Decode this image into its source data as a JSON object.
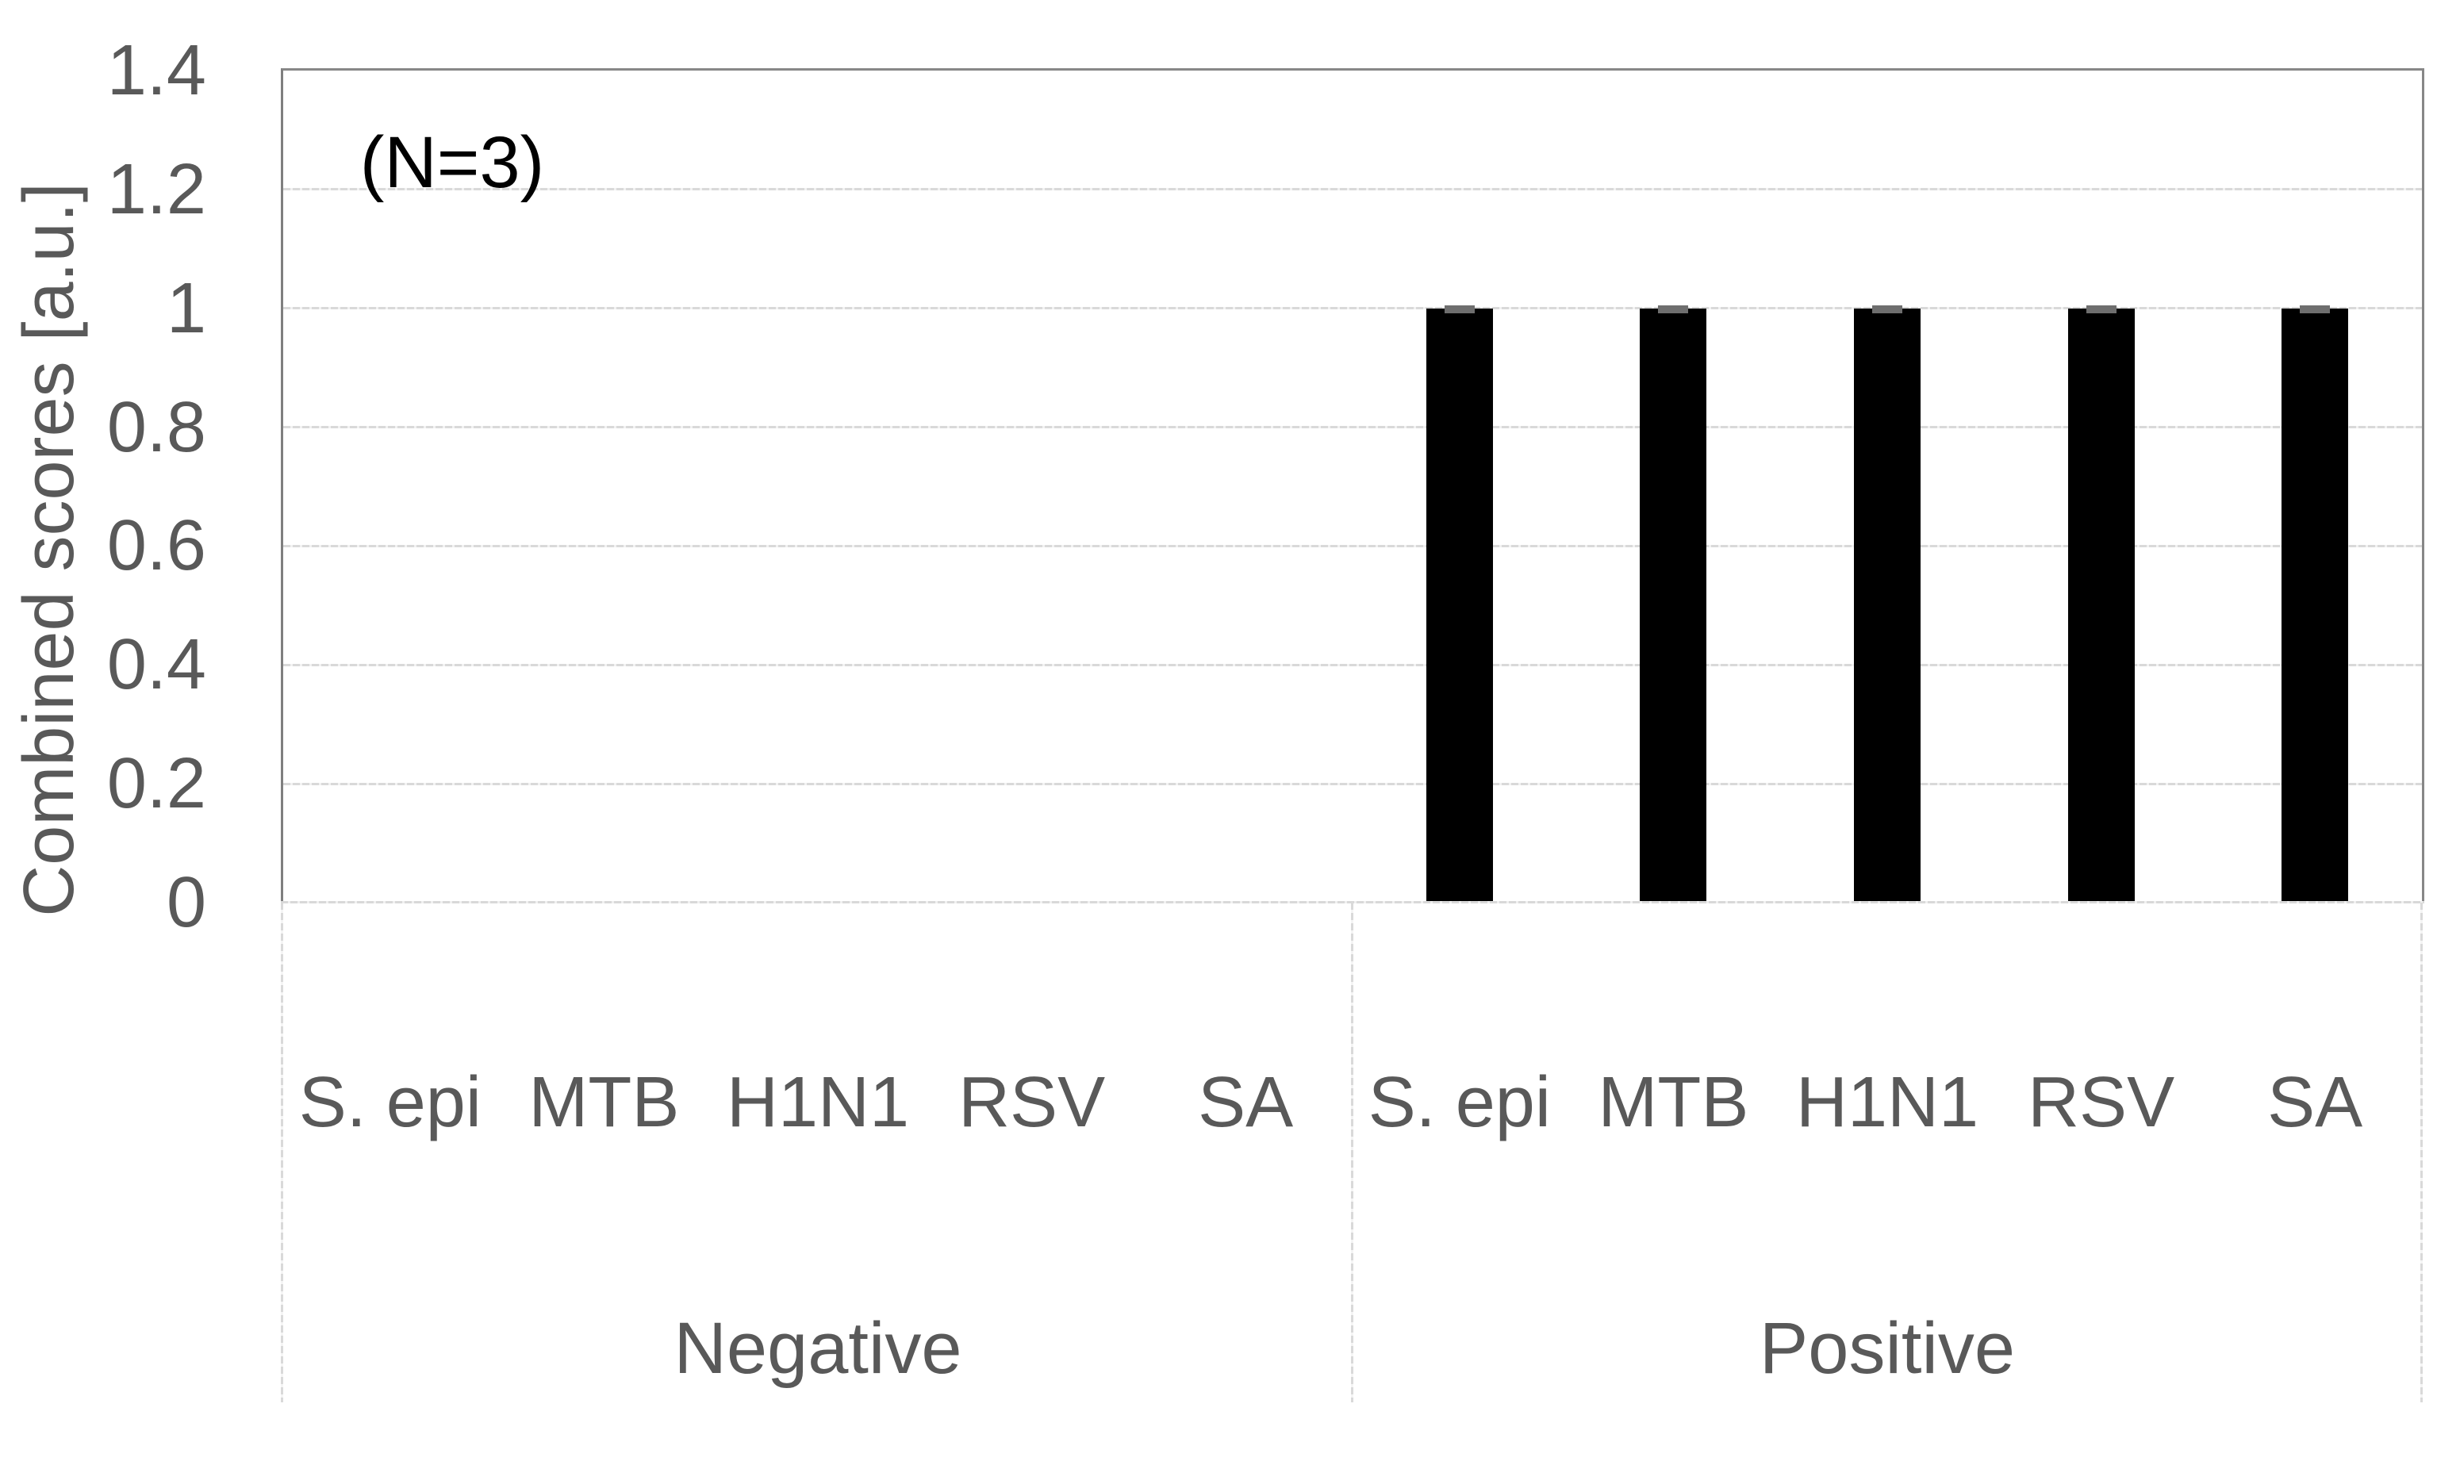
{
  "chart_data": {
    "type": "bar",
    "title": "",
    "annotation": "(N=3)",
    "ylabel": "Combined scores [a.u.]",
    "xlabel": "",
    "ylim": [
      0,
      1.4
    ],
    "ytick_step": 0.2,
    "ytick_labels": [
      "0",
      "0.2",
      "0.4",
      "0.6",
      "0.8",
      "1",
      "1.2",
      "1.4"
    ],
    "grid": true,
    "legend_position": "none",
    "groups": [
      {
        "label": "Negative",
        "categories": [
          "S. epi",
          "MTB",
          "H1N1",
          "RSV",
          "SA"
        ],
        "values": [
          0,
          0,
          0,
          0,
          0
        ]
      },
      {
        "label": "Positive",
        "categories": [
          "S. epi",
          "MTB",
          "H1N1",
          "RSV",
          "SA"
        ],
        "values": [
          1,
          1,
          1,
          1,
          1
        ]
      }
    ],
    "error_caps_on_bars": true
  },
  "colors": {
    "background": "#ffffff",
    "bar": "#000000",
    "error_cap": "#6e6e6e",
    "gridline": "#d9d9d9",
    "plot_border": "#858585",
    "axis_text": "#595959",
    "annotation_text": "#000000"
  }
}
